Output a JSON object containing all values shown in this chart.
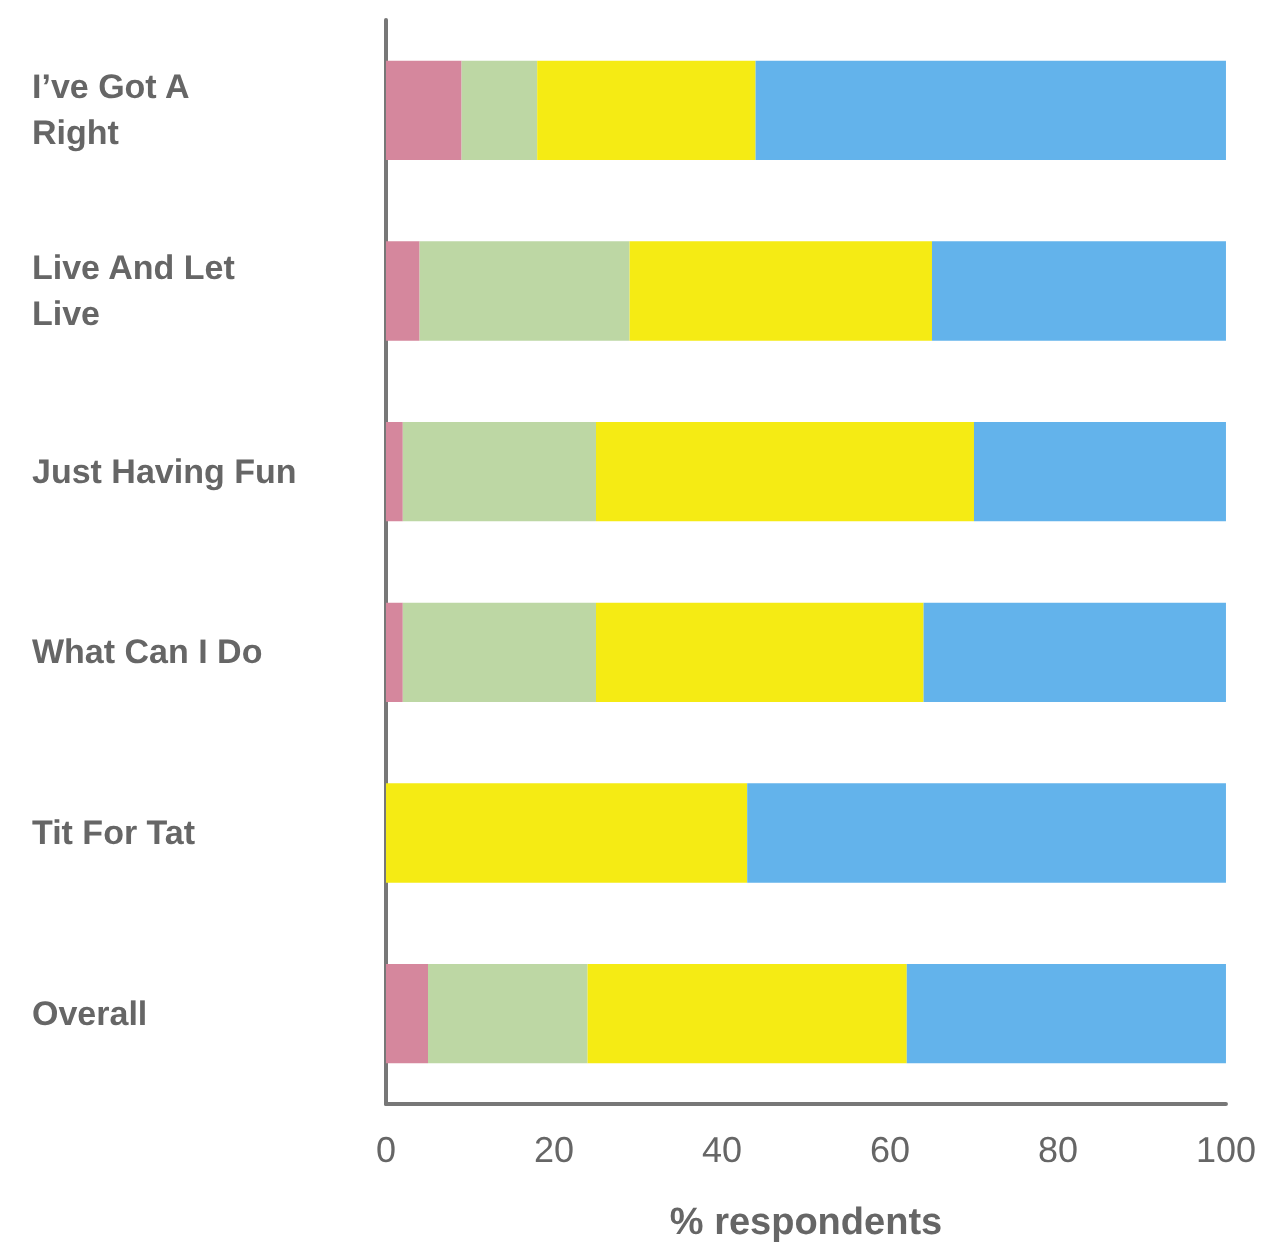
{
  "chart_data": {
    "type": "bar",
    "orientation": "horizontal",
    "stacked": true,
    "xlabel": "% respondents",
    "categories": [
      "I’ve Got A Right",
      "Live And Let Live",
      "Just Having Fun",
      "What Can I Do",
      "Tit For Tat",
      "Overall"
    ],
    "series": [
      {
        "color": "#d5879d",
        "values": [
          9,
          4,
          2,
          2,
          0,
          5
        ]
      },
      {
        "color": "#bdd7a4",
        "values": [
          9,
          25,
          23,
          23,
          0,
          19
        ]
      },
      {
        "color": "#f5eb14",
        "values": [
          26,
          36,
          45,
          39,
          43,
          38
        ]
      },
      {
        "color": "#63b3eb",
        "values": [
          56,
          35,
          30,
          36,
          57,
          38
        ]
      }
    ],
    "xlim": [
      0,
      100
    ],
    "xticks": [
      0,
      20,
      40,
      60,
      80,
      100
    ],
    "grid": false
  }
}
